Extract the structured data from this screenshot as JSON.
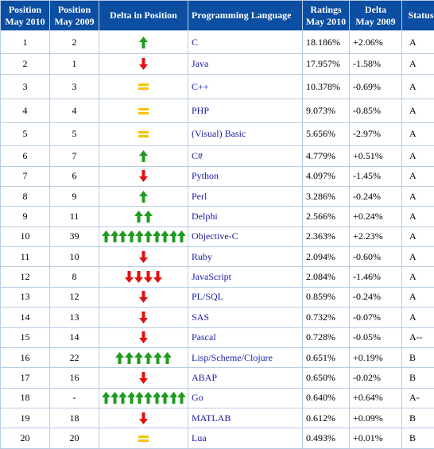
{
  "header": {
    "pos_2010": [
      "Position",
      "May 2010"
    ],
    "pos_2009": [
      "Position",
      "May 2009"
    ],
    "delta_pos": "Delta in Position",
    "language": "Programming Language",
    "ratings": [
      "Ratings",
      "May 2010"
    ],
    "delta": [
      "Delta",
      "May 2009"
    ],
    "status": "Status"
  },
  "colors": {
    "up": "#1f9c1f",
    "down": "#e01010",
    "same": "#f5c400",
    "header_bg": "#0b4ea2",
    "grid": "#b7cce4",
    "link": "#1a1aa6"
  },
  "rows": [
    {
      "pos2010": "1",
      "pos2009": "2",
      "change": {
        "dir": "up",
        "count": 1
      },
      "language": "C",
      "rating": "18.186%",
      "delta": "+2.06%",
      "status": "A"
    },
    {
      "pos2010": "2",
      "pos2009": "1",
      "change": {
        "dir": "down",
        "count": 1
      },
      "language": "Java",
      "rating": "17.957%",
      "delta": "-1.58%",
      "status": "A"
    },
    {
      "pos2010": "3",
      "pos2009": "3",
      "change": {
        "dir": "same",
        "count": 1
      },
      "language": "C++",
      "rating": "10.378%",
      "delta": "-0.69%",
      "status": "A"
    },
    {
      "pos2010": "4",
      "pos2009": "4",
      "change": {
        "dir": "same",
        "count": 1
      },
      "language": "PHP",
      "rating": "9.073%",
      "delta": "-0.85%",
      "status": "A"
    },
    {
      "pos2010": "5",
      "pos2009": "5",
      "change": {
        "dir": "same",
        "count": 1
      },
      "language": "(Visual) Basic",
      "rating": "5.656%",
      "delta": "-2.97%",
      "status": "A"
    },
    {
      "pos2010": "6",
      "pos2009": "7",
      "change": {
        "dir": "up",
        "count": 1
      },
      "language": "C#",
      "rating": "4.779%",
      "delta": "+0.51%",
      "status": "A"
    },
    {
      "pos2010": "7",
      "pos2009": "6",
      "change": {
        "dir": "down",
        "count": 1
      },
      "language": "Python",
      "rating": "4.097%",
      "delta": "-1.45%",
      "status": "A"
    },
    {
      "pos2010": "8",
      "pos2009": "9",
      "change": {
        "dir": "up",
        "count": 1
      },
      "language": "Perl",
      "rating": "3.286%",
      "delta": "-0.24%",
      "status": "A"
    },
    {
      "pos2010": "9",
      "pos2009": "11",
      "change": {
        "dir": "up",
        "count": 2
      },
      "language": "Delphi",
      "rating": "2.566%",
      "delta": "+0.24%",
      "status": "A"
    },
    {
      "pos2010": "10",
      "pos2009": "39",
      "change": {
        "dir": "up",
        "count": 10
      },
      "language": "Objective-C",
      "rating": "2.363%",
      "delta": "+2.23%",
      "status": "A"
    },
    {
      "pos2010": "11",
      "pos2009": "10",
      "change": {
        "dir": "down",
        "count": 1
      },
      "language": "Ruby",
      "rating": "2.094%",
      "delta": "-0.60%",
      "status": "A"
    },
    {
      "pos2010": "12",
      "pos2009": "8",
      "change": {
        "dir": "down",
        "count": 4
      },
      "language": "JavaScript",
      "rating": "2.084%",
      "delta": "-1.46%",
      "status": "A"
    },
    {
      "pos2010": "13",
      "pos2009": "12",
      "change": {
        "dir": "down",
        "count": 1
      },
      "language": "PL/SQL",
      "rating": "0.859%",
      "delta": "-0.24%",
      "status": "A"
    },
    {
      "pos2010": "14",
      "pos2009": "13",
      "change": {
        "dir": "down",
        "count": 1
      },
      "language": "SAS",
      "rating": "0.732%",
      "delta": "-0.07%",
      "status": "A"
    },
    {
      "pos2010": "15",
      "pos2009": "14",
      "change": {
        "dir": "down",
        "count": 1
      },
      "language": "Pascal",
      "rating": "0.728%",
      "delta": "-0.05%",
      "status": "A--"
    },
    {
      "pos2010": "16",
      "pos2009": "22",
      "change": {
        "dir": "up",
        "count": 6
      },
      "language": "Lisp/Scheme/Clojure",
      "rating": "0.651%",
      "delta": "+0.19%",
      "status": "B"
    },
    {
      "pos2010": "17",
      "pos2009": "16",
      "change": {
        "dir": "down",
        "count": 1
      },
      "language": "ABAP",
      "rating": "0.650%",
      "delta": "-0.02%",
      "status": "B"
    },
    {
      "pos2010": "18",
      "pos2009": "-",
      "change": {
        "dir": "up",
        "count": 10
      },
      "language": "Go",
      "rating": "0.640%",
      "delta": "+0.64%",
      "status": "A-"
    },
    {
      "pos2010": "19",
      "pos2009": "18",
      "change": {
        "dir": "down",
        "count": 1
      },
      "language": "MATLAB",
      "rating": "0.612%",
      "delta": "+0.09%",
      "status": "B"
    },
    {
      "pos2010": "20",
      "pos2009": "20",
      "change": {
        "dir": "same",
        "count": 1
      },
      "language": "Lua",
      "rating": "0.493%",
      "delta": "+0.01%",
      "status": "B"
    }
  ]
}
